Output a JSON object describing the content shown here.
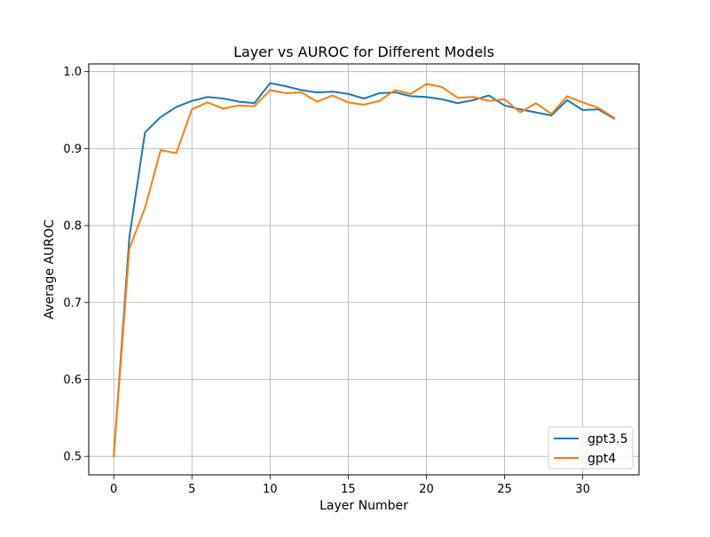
{
  "chart_data": {
    "type": "line",
    "title": "Layer vs AUROC for Different Models",
    "xlabel": "Layer Number",
    "ylabel": "Average AUROC",
    "xlim": [
      -1.6,
      33.6
    ],
    "ylim": [
      0.476,
      1.01
    ],
    "xticks": [
      0,
      5,
      10,
      15,
      20,
      25,
      30
    ],
    "yticks": [
      0.5,
      0.6,
      0.7,
      0.8,
      0.9,
      1.0
    ],
    "ytick_labels": [
      "0.5",
      "0.6",
      "0.7",
      "0.8",
      "0.9",
      "1.0"
    ],
    "grid": true,
    "legend_position": "lower-right",
    "x": [
      0,
      1,
      2,
      3,
      4,
      5,
      6,
      7,
      8,
      9,
      10,
      11,
      12,
      13,
      14,
      15,
      16,
      17,
      18,
      19,
      20,
      21,
      22,
      23,
      24,
      25,
      26,
      27,
      28,
      29,
      30,
      31,
      32
    ],
    "series": [
      {
        "name": "gpt3.5",
        "color": "#1f77b4",
        "values": [
          0.5,
          0.785,
          0.921,
          0.941,
          0.954,
          0.962,
          0.967,
          0.965,
          0.961,
          0.959,
          0.985,
          0.981,
          0.976,
          0.973,
          0.974,
          0.971,
          0.965,
          0.972,
          0.973,
          0.968,
          0.967,
          0.964,
          0.959,
          0.963,
          0.969,
          0.956,
          0.951,
          0.947,
          0.943,
          0.963,
          0.95,
          0.951,
          0.939
        ]
      },
      {
        "name": "gpt4",
        "color": "#ff7f0e",
        "values": [
          0.5,
          0.77,
          0.823,
          0.898,
          0.894,
          0.951,
          0.96,
          0.952,
          0.956,
          0.955,
          0.976,
          0.972,
          0.973,
          0.961,
          0.969,
          0.96,
          0.957,
          0.962,
          0.976,
          0.971,
          0.984,
          0.98,
          0.966,
          0.967,
          0.962,
          0.964,
          0.947,
          0.959,
          0.945,
          0.968,
          0.96,
          0.953,
          0.94
        ]
      }
    ]
  }
}
